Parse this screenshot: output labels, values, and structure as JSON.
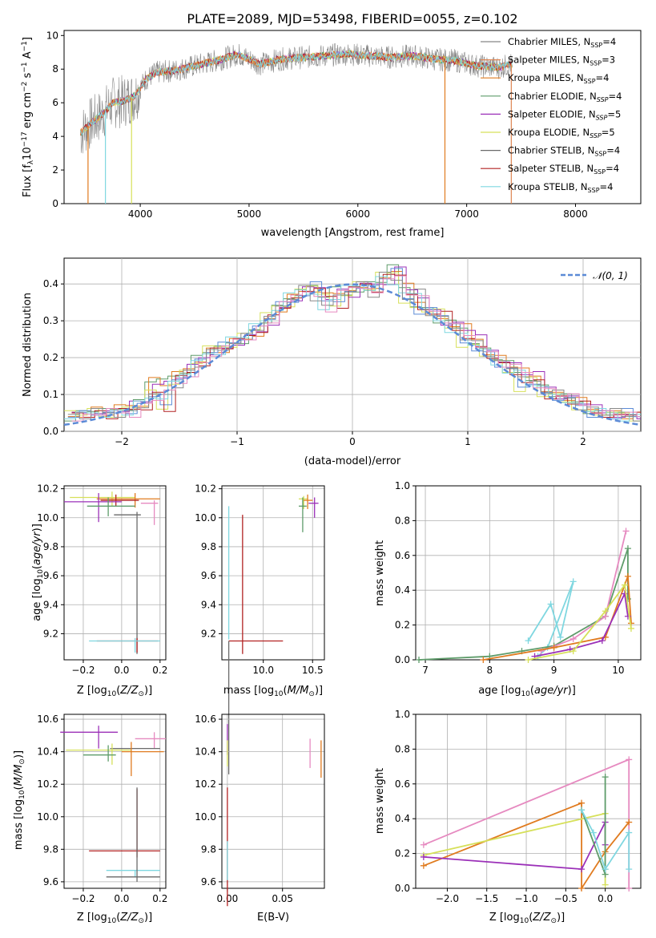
{
  "title": "PLATE=2089, MJD=53498, FIBERID=0055, z=0.102",
  "legend_labels": [
    "Chabrier MILES, N_SSP=4",
    "Salpeter MILES, N_SSP=3",
    "Kroupa MILES, N_SSP=4",
    "Chabrier ELODIE, N_SSP=4",
    "Salpeter ELODIE, N_SSP=5",
    "Kroupa ELODIE, N_SSP=5",
    "Chabrier STELIB, N_SSP=4",
    "Salpeter STELIB, N_SSP=4",
    "Kroupa STELIB, N_SSP=4"
  ],
  "chart_data": [
    {
      "type": "line",
      "panel": "spectrum",
      "xlabel": "wavelength [Angstrom, rest frame]",
      "ylabel": "Flux [f_λ10^-17 erg cm^-2 s^-1 A^-1]",
      "xlim": [
        3300,
        8600
      ],
      "ylim": [
        0,
        10.3
      ],
      "xticks": [
        4000,
        5000,
        6000,
        7000,
        8000
      ],
      "yticks": [
        0,
        2,
        4,
        6,
        8,
        10
      ],
      "grid": false,
      "legend_placement": "right",
      "data_points": {
        "x": [
          3450,
          3550,
          3650,
          3750,
          3850,
          3950,
          4050,
          4150,
          4300,
          4500,
          4700,
          4900,
          5100,
          5300,
          5500,
          5700,
          5900,
          6100,
          6300,
          6500,
          6700,
          6900,
          7100,
          7300,
          7420
        ],
        "y": [
          4.2,
          4.8,
          5.3,
          6.0,
          6.1,
          6.4,
          7.4,
          7.8,
          7.9,
          8.2,
          8.5,
          8.9,
          8.3,
          8.6,
          8.7,
          8.8,
          8.9,
          8.8,
          8.7,
          8.8,
          8.6,
          8.5,
          8.2,
          8.1,
          8.3
        ]
      },
      "series": [
        {
          "name": "Chabrier MILES, N_SSP=4",
          "color": "#888888"
        },
        {
          "name": "Salpeter MILES, N_SSP=3",
          "color": "#dd8452"
        },
        {
          "name": "Kroupa MILES, N_SSP=4",
          "color": "#e07b1f"
        },
        {
          "name": "Chabrier ELODIE, N_SSP=4",
          "color": "#5e9c6a"
        },
        {
          "name": "Salpeter ELODIE, N_SSP=5",
          "color": "#9b30b8"
        },
        {
          "name": "Kroupa ELODIE, N_SSP=5",
          "color": "#d6e05a"
        },
        {
          "name": "Chabrier STELIB, N_SSP=4",
          "color": "#6a6a6a"
        },
        {
          "name": "Salpeter STELIB, N_SSP=4",
          "color": "#b22222"
        },
        {
          "name": "Kroupa STELIB, N_SSP=4",
          "color": "#7fd7e0"
        }
      ]
    },
    {
      "type": "area",
      "panel": "residual-histogram",
      "xlabel": "(data-model)/error",
      "ylabel": "Normed distribution",
      "xlim": [
        -2.5,
        2.5
      ],
      "ylim": [
        0,
        0.47
      ],
      "xticks": [
        -2,
        -1,
        0,
        1,
        2
      ],
      "yticks": [
        0.0,
        0.1,
        0.2,
        0.3,
        0.4
      ],
      "grid": true,
      "legend_placement": "top-right",
      "legend": "N(0,1)",
      "normal_curve": {
        "mean": 0,
        "sigma": 1
      },
      "bin_width": 0.1,
      "histograms": [
        {
          "color": "#5e9c6a",
          "values": [
            0.04,
            0.05,
            0.06,
            0.05,
            0.06,
            0.07,
            0.08,
            0.14,
            0.13,
            0.15,
            0.17,
            0.2,
            0.22,
            0.22,
            0.24,
            0.25,
            0.27,
            0.3,
            0.33,
            0.36,
            0.38,
            0.39,
            0.37,
            0.38,
            0.37,
            0.39,
            0.4,
            0.41,
            0.44,
            0.39,
            0.35,
            0.33,
            0.3,
            0.29,
            0.28,
            0.25,
            0.22,
            0.2,
            0.18,
            0.16,
            0.15,
            0.12,
            0.1,
            0.09,
            0.08,
            0.06,
            0.05,
            0.05,
            0.04,
            0.04
          ]
        },
        {
          "color": "#e07b1f",
          "values": [
            0.05,
            0.05,
            0.05,
            0.04,
            0.05,
            0.06,
            0.07,
            0.1,
            0.06,
            0.14,
            0.16,
            0.19,
            0.22,
            0.23,
            0.24,
            0.26,
            0.28,
            0.31,
            0.34,
            0.35,
            0.38,
            0.4,
            0.36,
            0.34,
            0.38,
            0.4,
            0.39,
            0.42,
            0.43,
            0.36,
            0.33,
            0.33,
            0.32,
            0.28,
            0.24,
            0.23,
            0.21,
            0.18,
            0.16,
            0.12,
            0.14,
            0.1,
            0.09,
            0.08,
            0.07,
            0.05,
            0.05,
            0.04,
            0.05,
            0.04
          ]
        },
        {
          "color": "#9b30b8",
          "values": [
            0.04,
            0.04,
            0.05,
            0.05,
            0.05,
            0.05,
            0.07,
            0.09,
            0.1,
            0.13,
            0.16,
            0.18,
            0.21,
            0.22,
            0.25,
            0.26,
            0.28,
            0.3,
            0.34,
            0.37,
            0.39,
            0.36,
            0.33,
            0.37,
            0.39,
            0.4,
            0.37,
            0.42,
            0.41,
            0.37,
            0.38,
            0.32,
            0.3,
            0.28,
            0.26,
            0.24,
            0.21,
            0.18,
            0.17,
            0.16,
            0.13,
            0.11,
            0.1,
            0.09,
            0.07,
            0.06,
            0.05,
            0.05,
            0.04,
            0.04
          ]
        }
      ]
    },
    {
      "type": "scatter",
      "panel": "age-vs-Z",
      "xlabel": "Z [log10(Z/Z_sun)]",
      "ylabel": "age [log10(age/yr)]",
      "xlim": [
        -0.3,
        0.23
      ],
      "ylim": [
        9.02,
        10.22
      ],
      "xticks": [
        -0.2,
        0.0,
        0.2
      ],
      "yticks": [
        9.2,
        9.4,
        9.6,
        9.8,
        10.0,
        10.2
      ],
      "grid": true,
      "points": [
        {
          "x": -0.05,
          "y": 10.14,
          "color": "#d6e05a"
        },
        {
          "x": 0.07,
          "y": 10.13,
          "color": "#e07b1f"
        },
        {
          "x": -0.03,
          "y": 10.12,
          "color": "#b22222"
        },
        {
          "x": 0.17,
          "y": 10.1,
          "color": "#e68ac0"
        },
        {
          "x": -0.12,
          "y": 10.11,
          "color": "#9b30b8"
        },
        {
          "x": -0.07,
          "y": 10.08,
          "color": "#5e9c6a"
        },
        {
          "x": 0.08,
          "y": 10.02,
          "color": "#6a6a6a"
        },
        {
          "x": 0.08,
          "y": 9.15,
          "color": "#b22222"
        },
        {
          "x": 0.07,
          "y": 9.15,
          "color": "#7fd7e0"
        }
      ]
    },
    {
      "type": "scatter",
      "panel": "age-vs-mass",
      "xlabel": "mass [log10(M/M_sun)]",
      "xlim": [
        9.58,
        10.62
      ],
      "ylim": [
        9.02,
        10.22
      ],
      "xticks": [
        10.0,
        10.5
      ],
      "yticks": [
        9.2,
        9.4,
        9.6,
        9.8,
        10.0,
        10.2
      ],
      "grid": true,
      "points": [
        {
          "x": 10.41,
          "y": 10.13,
          "color": "#d6e05a"
        },
        {
          "x": 10.45,
          "y": 10.12,
          "color": "#e07b1f"
        },
        {
          "x": 10.52,
          "y": 10.1,
          "color": "#9b30b8"
        },
        {
          "x": 10.4,
          "y": 10.08,
          "color": "#5e9c6a"
        },
        {
          "x": 9.79,
          "y": 10.02,
          "color": "#b22222"
        },
        {
          "x": 9.65,
          "y": 10.08,
          "color": "#7fd7e0"
        },
        {
          "x": 9.79,
          "y": 9.15,
          "color": "#b22222"
        },
        {
          "x": 9.65,
          "y": 9.15,
          "color": "#6a6a6a"
        }
      ]
    },
    {
      "type": "line",
      "panel": "mass-weight-vs-age",
      "xlabel": "age [log10(age/yr)]",
      "ylabel": "mass weight",
      "xlim": [
        6.85,
        10.35
      ],
      "ylim": [
        0.0,
        1.0
      ],
      "xticks": [
        7,
        8,
        9,
        10
      ],
      "yticks": [
        0.0,
        0.2,
        0.4,
        0.6,
        0.8,
        1.0
      ],
      "grid": true,
      "series": [
        {
          "color": "#7fd7e0",
          "x": [
            8.6,
            8.95,
            9.1,
            9.3,
            8.9,
            8.75
          ],
          "y": [
            0.11,
            0.32,
            0.13,
            0.45,
            0.07,
            0.02
          ]
        },
        {
          "color": "#5e9c6a",
          "x": [
            6.9,
            8.0,
            8.5,
            9.0,
            9.8,
            10.15,
            10.15
          ],
          "y": [
            0.0,
            0.02,
            0.05,
            0.08,
            0.25,
            0.64,
            0.35
          ]
        },
        {
          "color": "#e68ac0",
          "x": [
            8.8,
            9.3,
            9.8,
            10.12
          ],
          "y": [
            0.05,
            0.12,
            0.25,
            0.74
          ]
        },
        {
          "color": "#e07b1f",
          "x": [
            7.9,
            9.0,
            9.8,
            10.15,
            10.2
          ],
          "y": [
            0.0,
            0.07,
            0.13,
            0.48,
            0.21
          ]
        },
        {
          "color": "#9b30b8",
          "x": [
            8.7,
            9.25,
            9.75,
            10.1,
            10.15
          ],
          "y": [
            0.02,
            0.06,
            0.11,
            0.38,
            0.25
          ]
        },
        {
          "color": "#d6e05a",
          "x": [
            8.6,
            9.3,
            9.8,
            10.1,
            10.2
          ],
          "y": [
            0.0,
            0.05,
            0.28,
            0.43,
            0.18
          ]
        }
      ]
    },
    {
      "type": "scatter",
      "panel": "mass-vs-Z",
      "xlabel": "Z [log10(Z/Z_sun)]",
      "ylabel": "mass [log10(M/M_sun)]",
      "xlim": [
        -0.3,
        0.23
      ],
      "ylim": [
        9.56,
        10.63
      ],
      "xticks": [
        -0.2,
        0.0,
        0.2
      ],
      "yticks": [
        9.6,
        9.8,
        10.0,
        10.2,
        10.4,
        10.6
      ],
      "grid": true,
      "points": [
        {
          "x": -0.12,
          "y": 10.52,
          "color": "#9b30b8"
        },
        {
          "x": 0.17,
          "y": 10.48,
          "color": "#e68ac0"
        },
        {
          "x": 0.07,
          "y": 10.42,
          "color": "#6a6a6a"
        },
        {
          "x": -0.05,
          "y": 10.41,
          "color": "#d6e05a"
        },
        {
          "x": 0.05,
          "y": 10.4,
          "color": "#e07b1f"
        },
        {
          "x": -0.07,
          "y": 10.38,
          "color": "#5e9c6a"
        },
        {
          "x": 0.08,
          "y": 9.79,
          "color": "#b22222"
        },
        {
          "x": 0.07,
          "y": 9.67,
          "color": "#7fd7e0"
        },
        {
          "x": 0.08,
          "y": 9.63,
          "color": "#6a6a6a"
        }
      ]
    },
    {
      "type": "scatter",
      "panel": "mass-vs-EBV",
      "xlabel": "E(B-V)",
      "xlim": [
        -0.005,
        0.088
      ],
      "ylim": [
        9.56,
        10.63
      ],
      "xticks": [
        0.0,
        0.05
      ],
      "yticks": [
        9.6,
        9.8,
        10.0,
        10.2,
        10.4,
        10.6
      ],
      "grid": true,
      "points": [
        {
          "x": 0.0,
          "y": 10.52,
          "color": "#9b30b8"
        },
        {
          "x": 0.0,
          "y": 10.41,
          "color": "#d6e05a"
        },
        {
          "x": 0.0,
          "y": 9.8,
          "color": "#b22222"
        },
        {
          "x": 0.0,
          "y": 9.67,
          "color": "#7fd7e0"
        },
        {
          "x": 0.075,
          "y": 10.4,
          "color": "#e68ac0"
        },
        {
          "x": 0.085,
          "y": 10.34,
          "color": "#e07b1f"
        }
      ]
    },
    {
      "type": "line",
      "panel": "mass-weight-vs-Z",
      "xlabel": "Z [log10(Z/Z_sun)]",
      "ylabel": "mass weight",
      "xlim": [
        -2.4,
        0.45
      ],
      "ylim": [
        0.0,
        1.0
      ],
      "xticks": [
        -2.0,
        -1.5,
        -1.0,
        -0.5,
        0.0
      ],
      "yticks": [
        0.0,
        0.2,
        0.4,
        0.6,
        0.8,
        1.0
      ],
      "grid": true,
      "series": [
        {
          "color": "#e68ac0",
          "x": [
            -2.3,
            0.3,
            0.3
          ],
          "y": [
            0.25,
            0.74,
            0.0
          ]
        },
        {
          "color": "#e07b1f",
          "x": [
            -2.3,
            -0.3,
            -0.3,
            0.0,
            0.3
          ],
          "y": [
            0.13,
            0.49,
            0.0,
            0.21,
            0.38
          ]
        },
        {
          "color": "#d6e05a",
          "x": [
            -2.3,
            0.0,
            0.0
          ],
          "y": [
            0.19,
            0.43,
            0.02
          ]
        },
        {
          "color": "#9b30b8",
          "x": [
            -2.3,
            -0.3,
            0.0,
            0.0
          ],
          "y": [
            0.18,
            0.11,
            0.38,
            0.25
          ]
        },
        {
          "color": "#5e9c6a",
          "x": [
            -0.3,
            0.0,
            0.0,
            0.0
          ],
          "y": [
            0.45,
            0.08,
            0.64,
            0.11
          ]
        },
        {
          "color": "#7fd7e0",
          "x": [
            -0.3,
            -0.15,
            0.0,
            0.3,
            0.3
          ],
          "y": [
            0.45,
            0.32,
            0.11,
            0.32,
            0.11
          ]
        }
      ]
    }
  ]
}
